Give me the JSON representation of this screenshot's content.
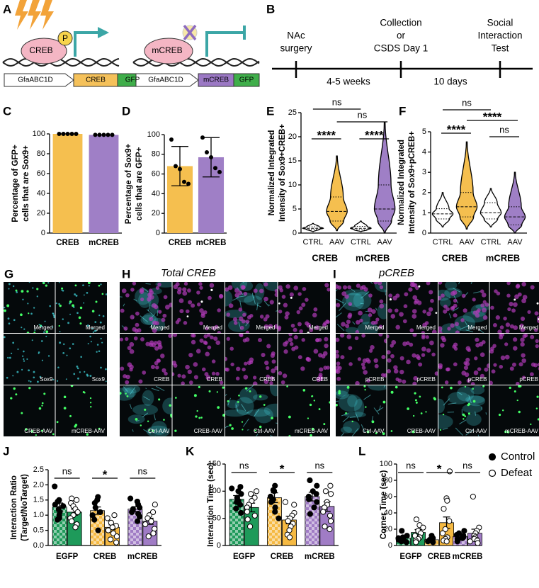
{
  "panel_a": {
    "label": "A",
    "creb_protein": "CREB",
    "phospho": "P",
    "mcreb_protein": "mCREB",
    "constructs": [
      {
        "promoter": "GfaABC1D",
        "gene": "CREB",
        "reporter": "GFP"
      },
      {
        "promoter": "GfaABC1D",
        "gene": "mCREB",
        "reporter": "GFP"
      }
    ]
  },
  "panel_b": {
    "label": "B",
    "events": [
      {
        "lines": [
          "NAc",
          "surgery"
        ]
      },
      {
        "lines": [
          "Collection",
          "or",
          "CSDS Day 1"
        ]
      },
      {
        "lines": [
          "Social",
          "Interaction",
          "Test"
        ]
      }
    ],
    "intervals": [
      "4-5 weeks",
      "10 days"
    ]
  },
  "chart_data": [
    {
      "type": "bar",
      "label": "C",
      "ylabel": [
        "Percentage of GFP+",
        "cells that are Sox9+"
      ],
      "categories": [
        "CREB",
        "mCREB"
      ],
      "values": [
        100,
        99
      ],
      "colors": [
        "#f5bf4f",
        "#9f7fc6"
      ],
      "points": [
        [
          100,
          100,
          100,
          100,
          100
        ],
        [
          99,
          99,
          99,
          99,
          99
        ]
      ],
      "ylim": [
        0,
        100
      ],
      "yticks": [
        0,
        20,
        40,
        60,
        80,
        100
      ]
    },
    {
      "type": "bar",
      "label": "D",
      "ylabel": [
        "Percentage of Sox9+",
        "cells that are GFP+"
      ],
      "categories": [
        "CREB",
        "mCREB"
      ],
      "values": [
        68,
        77
      ],
      "errors": [
        20,
        20
      ],
      "colors": [
        "#f5bf4f",
        "#9f7fc6"
      ],
      "points": [
        [
          95,
          68,
          65,
          52,
          50
        ],
        [
          97,
          82,
          77,
          66,
          62
        ]
      ],
      "ylim": [
        0,
        100
      ],
      "yticks": [
        0,
        20,
        40,
        60,
        80,
        100
      ]
    },
    {
      "type": "violin",
      "label": "E",
      "ylabel": [
        "Normalized Integrated",
        "Intensity of Sox9+CREB+"
      ],
      "groups": [
        "CREB",
        "mCREB"
      ],
      "categories": [
        "CTRL",
        "AAV",
        "CTRL",
        "AAV"
      ],
      "violins": [
        {
          "color": "#ffffff",
          "min": 0.3,
          "q1": 0.8,
          "median": 1.0,
          "q3": 1.3,
          "max": 2
        },
        {
          "color": "#f5bf4f",
          "min": 0.5,
          "q1": 2.5,
          "median": 4.5,
          "q3": 7.5,
          "max": 16
        },
        {
          "color": "#ffffff",
          "min": 0.3,
          "q1": 0.7,
          "median": 1.0,
          "q3": 1.4,
          "max": 2.5
        },
        {
          "color": "#9f7fc6",
          "min": 0,
          "q1": 2.5,
          "median": 5,
          "q3": 10,
          "max": 23
        }
      ],
      "within_group_significance": [
        "****",
        "****"
      ],
      "ctrl_vs_ctrl": "ns",
      "aav_vs_aav": "ns",
      "ylim": [
        0,
        25
      ],
      "yticks": [
        0,
        5,
        10,
        15,
        20,
        25
      ]
    },
    {
      "type": "violin",
      "label": "F",
      "ylabel": [
        "Normalized Integrated",
        "Intensity of Sox9+pCREB+"
      ],
      "groups": [
        "CREB",
        "mCREB"
      ],
      "categories": [
        "CTRL",
        "AAV",
        "CTRL",
        "AAV"
      ],
      "violins": [
        {
          "color": "#ffffff",
          "min": 0.3,
          "q1": 0.7,
          "median": 0.95,
          "q3": 1.2,
          "max": 2.0
        },
        {
          "color": "#f5bf4f",
          "min": 0.2,
          "q1": 0.8,
          "median": 1.3,
          "q3": 2.0,
          "max": 4.5
        },
        {
          "color": "#ffffff",
          "min": 0.3,
          "q1": 0.7,
          "median": 1.0,
          "q3": 1.5,
          "max": 2.2
        },
        {
          "color": "#9f7fc6",
          "min": 0,
          "q1": 0.4,
          "median": 0.8,
          "q3": 1.3,
          "max": 3.0
        }
      ],
      "within_group_significance": [
        "****",
        "ns"
      ],
      "ctrl_vs_ctrl": "ns",
      "aav_vs_aav": "****",
      "ylim": [
        0,
        5
      ],
      "yticks": [
        0,
        1,
        2,
        3,
        4,
        5
      ]
    },
    {
      "type": "grouped_bar",
      "label": "J",
      "ylabel": [
        "Interaction  Ratio",
        "(Target/NoTarget)"
      ],
      "categories": [
        "EGFP",
        "CREB",
        "mCREB"
      ],
      "colors": [
        "#1e9a5a",
        "#f5b942",
        "#a07cc5"
      ],
      "series": [
        {
          "pattern": "checkered",
          "marker_fill": "#000000",
          "values": [
            1.27,
            1.15,
            1.2
          ],
          "errors": [
            0.13,
            0.12,
            0.08
          ],
          "points": [
            [
              1.95,
              1.5,
              1.45,
              1.35,
              1.3,
              1.2,
              1.1,
              1.0,
              0.9,
              0.85
            ],
            [
              1.6,
              1.5,
              1.4,
              1.25,
              1.1,
              1.0,
              0.85,
              0.5
            ],
            [
              1.55,
              1.45,
              1.35,
              1.25,
              1.2,
              1.1,
              1.05,
              0.95,
              0.8
            ]
          ]
        },
        {
          "pattern": "solid",
          "marker_fill": "#ffffff",
          "values": [
            1.1,
            0.6,
            0.8
          ],
          "errors": [
            0.1,
            0.08,
            0.1
          ],
          "points": [
            [
              1.55,
              1.5,
              1.4,
              1.3,
              1.2,
              1.1,
              1.0,
              0.9,
              0.8,
              0.7,
              0.6
            ],
            [
              1.0,
              0.9,
              0.75,
              0.65,
              0.6,
              0.5,
              0.4,
              0.3,
              0.2,
              0.1
            ],
            [
              1.35,
              1.1,
              1.0,
              0.9,
              0.8,
              0.7,
              0.55,
              0.4,
              0.3
            ]
          ]
        }
      ],
      "significance": [
        "ns",
        "*",
        "ns"
      ],
      "ylim": [
        0,
        2.5
      ],
      "yticks": [
        {
          "value": 0,
          "label": "0.0"
        },
        0.5,
        {
          "value": 1,
          "label": "1.0"
        },
        1.5,
        {
          "value": 2,
          "label": "2.0"
        },
        2.5
      ]
    },
    {
      "type": "grouped_bar",
      "label": "K",
      "ylabel": [
        "Interaction Time (sec)"
      ],
      "categories": [
        "EGFP",
        "CREB",
        "mCREB"
      ],
      "colors": [
        "#1e9a5a",
        "#f5b942",
        "#a07cc5"
      ],
      "series": [
        {
          "pattern": "checkered",
          "marker_fill": "#000000",
          "values": [
            85,
            88,
            90
          ],
          "errors": [
            7,
            9,
            8
          ],
          "points": [
            [
              108,
              105,
              100,
              95,
              88,
              82,
              80,
              75,
              68,
              60
            ],
            [
              110,
              102,
              100,
              90,
              85,
              80,
              70,
              62,
              50
            ],
            [
              120,
              110,
              100,
              95,
              90,
              85,
              80,
              70,
              58
            ]
          ]
        },
        {
          "pattern": "solid",
          "marker_fill": "#ffffff",
          "values": [
            70,
            47,
            72
          ],
          "errors": [
            8,
            7,
            9
          ],
          "points": [
            [
              100,
              95,
              88,
              82,
              75,
              70,
              62,
              55,
              48,
              35
            ],
            [
              80,
              75,
              60,
              55,
              50,
              45,
              40,
              35,
              28,
              20,
              15
            ],
            [
              110,
              100,
              95,
              80,
              75,
              70,
              62,
              55,
              45,
              35,
              30
            ]
          ]
        }
      ],
      "significance": [
        "ns",
        "*",
        "ns"
      ],
      "ylim": [
        0,
        150
      ],
      "yticks": [
        0,
        50,
        100,
        150
      ]
    },
    {
      "type": "grouped_bar",
      "label": "L",
      "ylabel": [
        "Corner Time (sec)"
      ],
      "categories": [
        "EGFP",
        "CREB",
        "mCREB"
      ],
      "colors": [
        "#1e9a5a",
        "#f5b942",
        "#a07cc5"
      ],
      "legend": "upper right",
      "series": [
        {
          "name": "Control",
          "pattern": "checkered",
          "marker_fill": "#000000",
          "values": [
            9,
            7,
            11
          ],
          "errors": [
            2,
            1,
            2
          ],
          "points": [
            [
              18,
              12,
              10,
              9,
              8,
              7,
              6,
              5,
              4
            ],
            [
              12,
              9,
              8,
              7,
              6,
              6,
              5,
              4
            ],
            [
              18,
              15,
              13,
              12,
              10,
              9,
              8,
              7,
              5
            ]
          ]
        },
        {
          "name": "Defeat",
          "pattern": "solid",
          "marker_fill": "#ffffff",
          "values": [
            16,
            28,
            15
          ],
          "errors": [
            3.5,
            7,
            5
          ],
          "points": [
            [
              32,
              25,
              22,
              18,
              15,
              12,
              10,
              8,
              6,
              4
            ],
            [
              91,
              58,
              55,
              45,
              30,
              20,
              15,
              10,
              8,
              6,
              5
            ],
            [
              60,
              22,
              18,
              15,
              12,
              10,
              8,
              6,
              5,
              3
            ]
          ]
        }
      ],
      "significance": [
        "ns",
        "*",
        "ns"
      ],
      "ylim": [
        0,
        100
      ],
      "yticks": [
        0,
        20,
        40,
        60,
        80,
        100
      ]
    }
  ],
  "images": [
    {
      "label": "G",
      "tiles": [
        [
          "Merged",
          "Merged"
        ],
        [
          "Sox9",
          "Sox9"
        ],
        [
          "CREB-AAV",
          "mCREB-AAV"
        ]
      ]
    },
    {
      "label": "H",
      "title": "Total CREB",
      "tiles": [
        [
          "Merged",
          "Merged",
          "Merged",
          "Merged"
        ],
        [
          "CREB",
          "CREB",
          "CREB",
          "CREB"
        ],
        [
          "Ctrl-AAV",
          "CREB-AAV",
          "Ctrl-AAV",
          "mCREB-AAV"
        ]
      ]
    },
    {
      "label": "I",
      "title": "pCREB",
      "tiles": [
        [
          "Merged",
          "Merged",
          "Merged",
          "Merged"
        ],
        [
          "pCREB",
          "pCREB",
          "pCREB",
          "pCREB"
        ],
        [
          "Ctrl-AAV",
          "CREB-AAV",
          "Ctrl-AAV",
          "mCREB-AAV"
        ]
      ]
    }
  ]
}
